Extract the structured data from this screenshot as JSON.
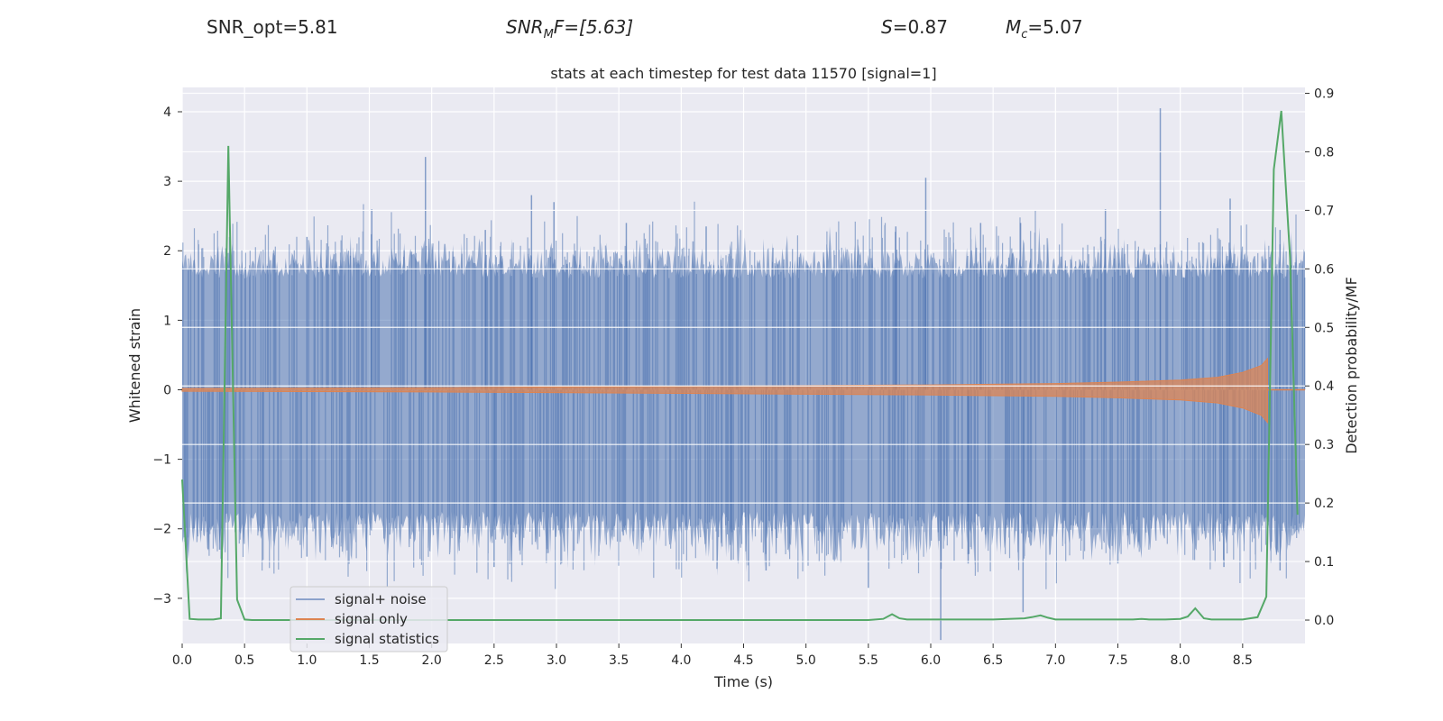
{
  "header": {
    "snr_opt": "SNR_opt=5.81",
    "snr_mf_name": "SNR",
    "snr_mf_sub": "M",
    "snr_mf_tail": "F=[5.63]",
    "s_name": "S",
    "s_value": "=0.87",
    "mc_name": "M",
    "mc_sub": "c",
    "mc_value": "=5.07"
  },
  "chart_data": {
    "type": "line",
    "title": "stats at each timestep for test data 11570 [signal=1]",
    "xlabel": "Time (s)",
    "ylabel": "Whitened strain",
    "ylabel_right": "Detection probability/MF",
    "xlim": [
      0.0,
      9.0
    ],
    "ylim": [
      -3.65,
      4.35
    ],
    "ylim_right": [
      -0.04,
      0.91
    ],
    "xticks": [
      0.0,
      0.5,
      1.0,
      1.5,
      2.0,
      2.5,
      3.0,
      3.5,
      4.0,
      4.5,
      5.0,
      5.5,
      6.0,
      6.5,
      7.0,
      7.5,
      8.0,
      8.5
    ],
    "xtick_labels": [
      "0.0",
      "0.5",
      "1.0",
      "1.5",
      "2.0",
      "2.5",
      "3.0",
      "3.5",
      "4.0",
      "4.5",
      "5.0",
      "5.5",
      "6.0",
      "6.5",
      "7.0",
      "7.5",
      "8.0",
      "8.5"
    ],
    "yticks": [
      -3,
      -2,
      -1,
      0,
      1,
      2,
      3,
      4
    ],
    "ytick_labels": [
      "−3",
      "−2",
      "−1",
      "0",
      "1",
      "2",
      "3",
      "4"
    ],
    "yticks_right": [
      0.0,
      0.1,
      0.2,
      0.3,
      0.4,
      0.5,
      0.6,
      0.7,
      0.8,
      0.9
    ],
    "ytick_labels_right": [
      "0.0",
      "0.1",
      "0.2",
      "0.3",
      "0.4",
      "0.5",
      "0.6",
      "0.7",
      "0.8",
      "0.9"
    ],
    "legend_position": "lower-left",
    "series": [
      {
        "name": "signal+ noise",
        "color": "#4c72b0",
        "axis": "left",
        "band": {
          "core_amplitude": 1.6,
          "spread_lower": -2.0
        },
        "peaks": [
          {
            "x": 0.38,
            "y": 2.2
          },
          {
            "x": 1.0,
            "y": 2.2
          },
          {
            "x": 1.52,
            "y": 2.6
          },
          {
            "x": 1.95,
            "y": 3.35
          },
          {
            "x": 2.43,
            "y": 2.3
          },
          {
            "x": 2.8,
            "y": 2.8
          },
          {
            "x": 2.98,
            "y": 2.7
          },
          {
            "x": 3.56,
            "y": 2.4
          },
          {
            "x": 4.2,
            "y": 2.35
          },
          {
            "x": 5.72,
            "y": 2.35
          },
          {
            "x": 5.96,
            "y": 3.05
          },
          {
            "x": 6.4,
            "y": 2.4
          },
          {
            "x": 6.72,
            "y": 2.4
          },
          {
            "x": 7.4,
            "y": 2.6
          },
          {
            "x": 7.84,
            "y": 4.05
          },
          {
            "x": 8.4,
            "y": 2.75
          },
          {
            "x": 8.8,
            "y": 2.3
          }
        ],
        "troughs": [
          {
            "x": 0.3,
            "y": -2.3
          },
          {
            "x": 1.0,
            "y": -2.4
          },
          {
            "x": 2.5,
            "y": -2.55
          },
          {
            "x": 4.4,
            "y": -2.45
          },
          {
            "x": 4.68,
            "y": -2.6
          },
          {
            "x": 5.5,
            "y": -2.85
          },
          {
            "x": 6.08,
            "y": -3.6
          },
          {
            "x": 6.3,
            "y": -2.5
          },
          {
            "x": 6.74,
            "y": -3.2
          },
          {
            "x": 7.5,
            "y": -2.5
          },
          {
            "x": 8.35,
            "y": -2.55
          },
          {
            "x": 8.8,
            "y": -2.6
          }
        ]
      },
      {
        "name": "signal only",
        "color": "#dd8452",
        "axis": "left",
        "envelope": {
          "x": [
            0.0,
            2.0,
            4.0,
            5.0,
            6.0,
            7.0,
            7.5,
            8.0,
            8.3,
            8.5,
            8.65,
            8.7
          ],
          "y": [
            0.02,
            0.03,
            0.05,
            0.06,
            0.07,
            0.09,
            0.11,
            0.14,
            0.18,
            0.25,
            0.35,
            0.45
          ]
        }
      },
      {
        "name": "signal statistics",
        "color": "#55a868",
        "axis": "right",
        "x": [
          0.0,
          0.06,
          0.13,
          0.19,
          0.25,
          0.31,
          0.37,
          0.44,
          0.5,
          0.56,
          1.0,
          2.0,
          3.0,
          4.0,
          5.0,
          5.5,
          5.62,
          5.69,
          5.75,
          5.81,
          6.5,
          6.75,
          6.81,
          6.88,
          6.94,
          7.0,
          7.5,
          7.62,
          7.69,
          7.75,
          7.88,
          8.0,
          8.06,
          8.12,
          8.19,
          8.25,
          8.31,
          8.5,
          8.62,
          8.69,
          8.75,
          8.81,
          8.88,
          8.94
        ],
        "y": [
          0.24,
          0.002,
          0.001,
          0.001,
          0.001,
          0.003,
          0.81,
          0.035,
          0.001,
          0.0,
          0.0,
          0.0,
          0.0,
          0.0,
          0.0,
          0.0,
          0.002,
          0.01,
          0.003,
          0.001,
          0.001,
          0.003,
          0.005,
          0.008,
          0.004,
          0.001,
          0.001,
          0.001,
          0.002,
          0.001,
          0.001,
          0.002,
          0.006,
          0.02,
          0.003,
          0.001,
          0.001,
          0.001,
          0.005,
          0.04,
          0.77,
          0.87,
          0.62,
          0.18
        ]
      }
    ]
  }
}
